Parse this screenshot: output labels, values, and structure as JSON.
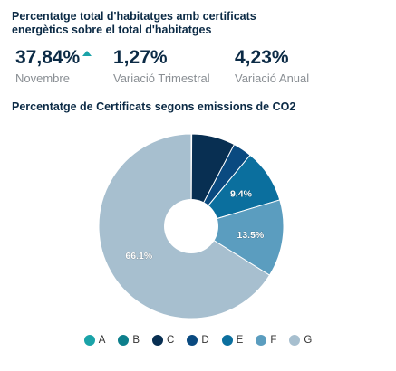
{
  "header": {
    "title": "Percentatge total d'habitatges amb certificats energètics sobre el total d'habitatges"
  },
  "kpis": [
    {
      "value": "37,84%",
      "label": "Novembre",
      "trend_icon": "arrow-up-icon"
    },
    {
      "value": "1,27%",
      "label": "Variació Trimestral"
    },
    {
      "value": "4,23%",
      "label": "Variació Anual"
    }
  ],
  "colors": {
    "trend": "#1aa3a8",
    "A": "#1aa3a8",
    "B": "#0d7f8c",
    "C": "#082f52",
    "D": "#0a4a80",
    "E": "#0b6f9e",
    "F": "#5b9dbf",
    "G": "#a7bfcf"
  },
  "chart_data": {
    "type": "pie",
    "title": "Percentatge de Certificats segons emissions de CO2",
    "donut": true,
    "start_angle_deg": 0,
    "categories": [
      "A",
      "B",
      "C",
      "D",
      "E",
      "F",
      "G"
    ],
    "values": [
      0.0,
      0.1,
      7.6,
      3.3,
      9.4,
      13.5,
      66.1
    ],
    "data_labels": [
      "",
      "",
      "",
      "",
      "9.4%",
      "13.5%",
      "66.1%"
    ],
    "legend_position": "bottom"
  }
}
